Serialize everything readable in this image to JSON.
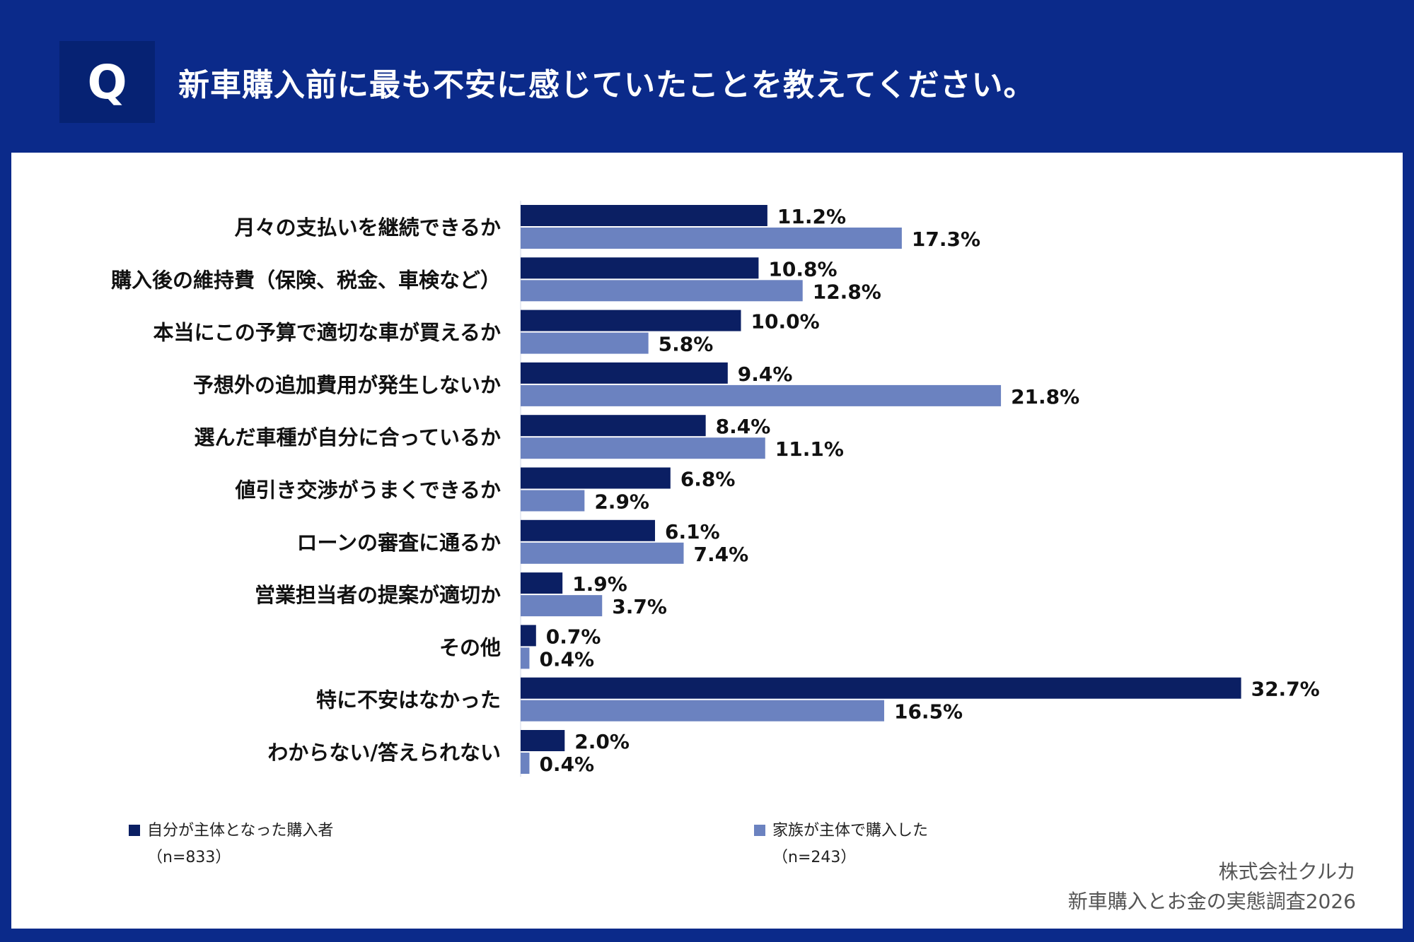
{
  "header": {
    "q_mark": "Q",
    "question": "新車購入前に最も不安に感じていたことを教えてください。"
  },
  "colors": {
    "background": "#0b2a8a",
    "panel": "#ffffff",
    "series_self": "#0b1f63",
    "series_family": "#6b82c0"
  },
  "chart_data": {
    "type": "bar",
    "orientation": "horizontal",
    "title": "新車購入前に最も不安に感じていたことを教えてください。",
    "unit": "%",
    "categories": [
      "月々の支払いを継続できるか",
      "購入後の維持費（保険、税金、車検など）",
      "本当にこの予算で適切な車が買えるか",
      "予想外の追加費用が発生しないか",
      "選んだ車種が自分に合っているか",
      "値引き交渉がうまくできるか",
      "ローンの審査に通るか",
      "営業担当者の提案が適切か",
      "その他",
      "特に不安はなかった",
      "わからない/答えられない"
    ],
    "series": [
      {
        "name": "自分が主体となった購入者",
        "n": "（n=833）",
        "color": "#0b1f63",
        "values": [
          11.2,
          10.8,
          10.0,
          9.4,
          8.4,
          6.8,
          6.1,
          1.9,
          0.7,
          32.7,
          2.0
        ]
      },
      {
        "name": "家族が主体で購入した",
        "n": "（n=243）",
        "color": "#6b82c0",
        "values": [
          17.3,
          12.8,
          5.8,
          21.8,
          11.1,
          2.9,
          7.4,
          3.7,
          0.4,
          16.5,
          0.4
        ]
      }
    ],
    "legend_position": "bottom"
  },
  "source": {
    "company": "株式会社クルカ",
    "survey": "新車購入とお金の実態調査2026"
  }
}
